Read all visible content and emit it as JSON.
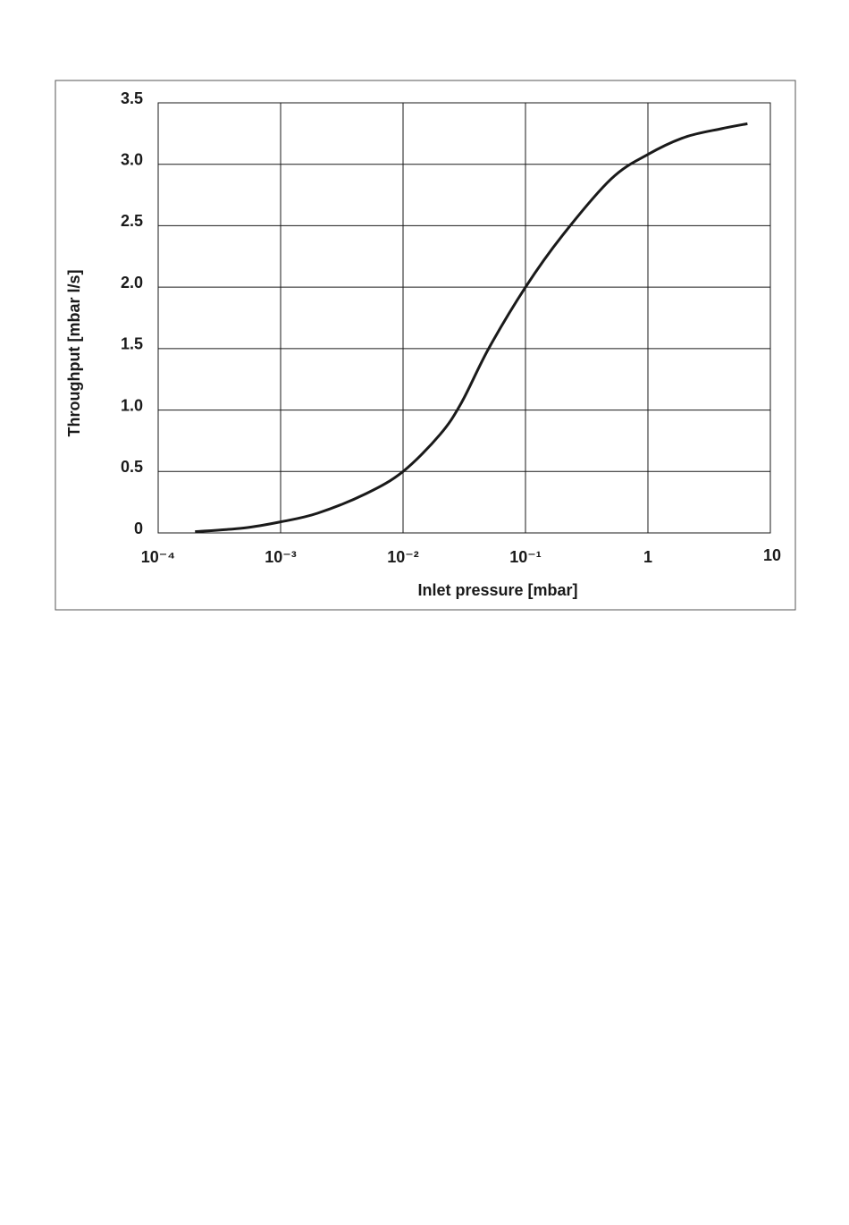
{
  "chart_data": {
    "type": "line",
    "x_label": "Inlet pressure [mbar]",
    "y_label": "Throughput [mbar l/s]",
    "x": [
      0.0002,
      0.0005,
      0.001,
      0.002,
      0.005,
      0.01,
      0.02,
      0.03,
      0.05,
      0.1,
      0.2,
      0.5,
      1,
      2,
      4,
      6.5
    ],
    "values": [
      0.01,
      0.04,
      0.09,
      0.16,
      0.32,
      0.5,
      0.8,
      1.06,
      1.5,
      2.0,
      2.42,
      2.88,
      3.08,
      3.22,
      3.29,
      3.33
    ],
    "color": "#1a1a1a",
    "x_scale": "log",
    "xlim": [
      0.0001,
      10
    ],
    "xticks": [
      {
        "value": 0.0001,
        "label": "10⁻⁴"
      },
      {
        "value": 0.001,
        "label": "10⁻³"
      },
      {
        "value": 0.01,
        "label": "10⁻²"
      },
      {
        "value": 0.1,
        "label": "10⁻¹"
      },
      1,
      10
    ],
    "ylim": [
      0,
      3.5
    ],
    "yticks": [
      0,
      0.5,
      {
        "value": 1,
        "label": "1.0"
      },
      1.5,
      {
        "value": 2,
        "label": "2.0"
      },
      2.5,
      {
        "value": 3,
        "label": "3.0"
      },
      3.5
    ],
    "grid": true
  }
}
